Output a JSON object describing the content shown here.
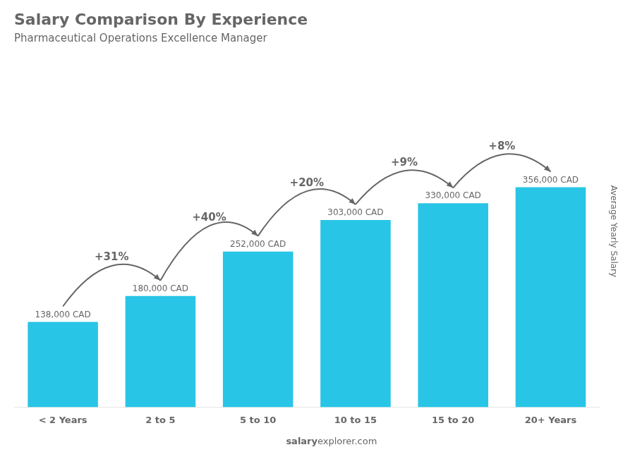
{
  "chart_data": {
    "type": "bar",
    "title": "Salary Comparison By Experience",
    "subtitle": "Pharmaceutical Operations Excellence Manager",
    "categories": [
      "< 2 Years",
      "2 to 5",
      "5 to 10",
      "10 to 15",
      "15 to 20",
      "20+ Years"
    ],
    "values": [
      138000,
      180000,
      252000,
      303000,
      330000,
      356000
    ],
    "value_labels": [
      "138,000 CAD",
      "180,000 CAD",
      "252,000 CAD",
      "303,000 CAD",
      "330,000 CAD",
      "356,000 CAD"
    ],
    "data_labels": true,
    "color": "#29c5e6",
    "ylim": [
      0,
      569600
    ],
    "ylabel": "Average Yearly Salary",
    "grid": false,
    "tick_labels": "x",
    "annotations": [
      "+31%",
      "+40%",
      "+20%",
      "+9%",
      "+8%"
    ],
    "watermark": [
      "salary",
      "explorer.com"
    ]
  }
}
